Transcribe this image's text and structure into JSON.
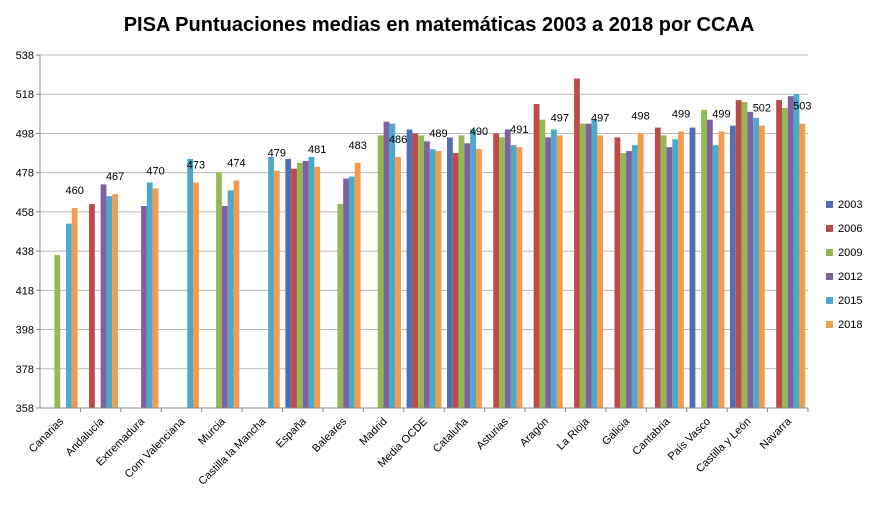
{
  "chart_data": {
    "type": "bar",
    "title": "PISA Puntuaciones medias en matemáticas  2003 a 2018 por CCAA",
    "xlabel": "",
    "ylabel": "",
    "ylim": [
      358,
      538
    ],
    "yticks": [
      358,
      378,
      398,
      418,
      438,
      458,
      478,
      498,
      518,
      538
    ],
    "grid": true,
    "legend_position": "right",
    "categories": [
      "Canarias",
      "Andalucía",
      "Extremadura",
      "Com Valenciana",
      "Murcia",
      "Castilla la Mancha",
      "España",
      "Baleares",
      "Madrid",
      "Media OCDE",
      "Cataluña",
      "Asturias",
      "Aragón",
      "La Rioja",
      "Galicia",
      "Cantabria",
      "País Vasco",
      "Castilla y León",
      "Navarra"
    ],
    "series": [
      {
        "name": "2003",
        "color": "#4F6FB0",
        "values": [
          null,
          null,
          null,
          null,
          null,
          null,
          485,
          null,
          null,
          500,
          496,
          null,
          null,
          null,
          null,
          null,
          501,
          502,
          null
        ]
      },
      {
        "name": "2006",
        "color": "#BE4B48",
        "values": [
          null,
          462,
          null,
          null,
          null,
          null,
          480,
          null,
          null,
          498,
          488,
          498,
          513,
          526,
          496,
          501,
          null,
          515,
          515
        ]
      },
      {
        "name": "2009",
        "color": "#94B952",
        "values": [
          436,
          null,
          null,
          null,
          478,
          null,
          483,
          462,
          497,
          497,
          497,
          496,
          505,
          503,
          488,
          497,
          510,
          514,
          511
        ]
      },
      {
        "name": "2012",
        "color": "#7D61A0",
        "values": [
          null,
          472,
          461,
          null,
          461,
          null,
          484,
          475,
          504,
          494,
          493,
          500,
          496,
          503,
          489,
          491,
          505,
          509,
          517
        ]
      },
      {
        "name": "2015",
        "color": "#4CA9C7",
        "values": [
          452,
          466,
          473,
          485,
          469,
          486,
          486,
          476,
          503,
          490,
          500,
          492,
          500,
          505,
          492,
          495,
          492,
          506,
          518
        ]
      },
      {
        "name": "2018",
        "color": "#F59B4E",
        "values": [
          460,
          467,
          470,
          473,
          474,
          479,
          481,
          483,
          486,
          489,
          490,
          491,
          497,
          497,
          498,
          499,
          499,
          502,
          503
        ]
      }
    ],
    "data_labels": {
      "series": "2018",
      "values": [
        "460",
        "467",
        "470",
        "473",
        "474",
        "479",
        "481",
        "483",
        "486",
        "489",
        "490",
        "491",
        "497",
        "497",
        "498",
        "499",
        "499",
        "502",
        "503"
      ]
    }
  }
}
